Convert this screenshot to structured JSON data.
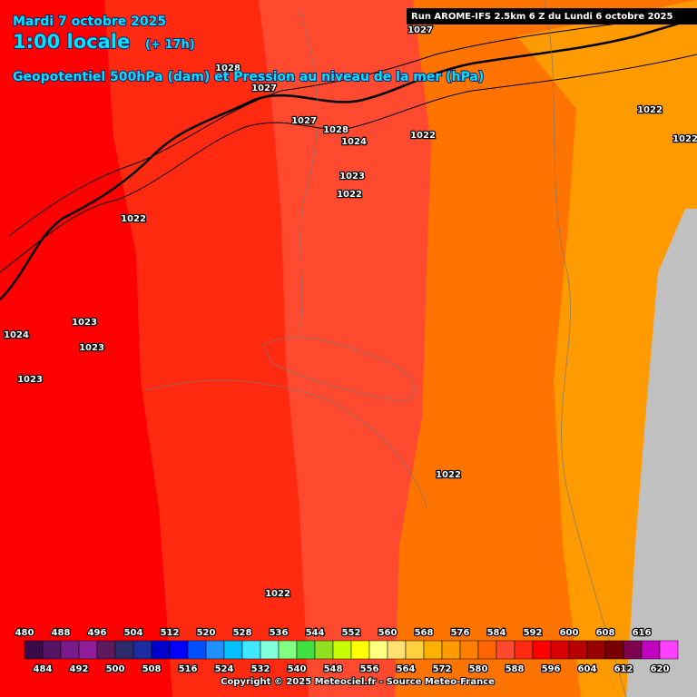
{
  "header": {
    "date": "Mardi 7 octobre 2025",
    "time": "1:00 locale",
    "lead": "(+ 17h)",
    "title": "Geopotentiel 500hPa (dam) et Pression au niveau de la mer (hPa)",
    "run": "Run AROME-IFS 2.5km 6 Z du Lundi 6 octobre 2025"
  },
  "isobar_labels": [
    "1027",
    "1028",
    "1027",
    "1027",
    "1028",
    "1024",
    "1022",
    "1022",
    "1022",
    "1023",
    "1022",
    "1022",
    "1023",
    "1024",
    "1023",
    "1023",
    "1022",
    "1022"
  ],
  "legend": {
    "top_labels": [
      "480",
      "488",
      "496",
      "504",
      "512",
      "520",
      "528",
      "536",
      "544",
      "552",
      "560",
      "568",
      "576",
      "584",
      "592",
      "600",
      "608",
      "616"
    ],
    "bottom_labels": [
      "484",
      "492",
      "500",
      "508",
      "516",
      "524",
      "532",
      "540",
      "548",
      "556",
      "564",
      "572",
      "580",
      "588",
      "596",
      "604",
      "612",
      "620"
    ],
    "colors": [
      "#3a0a48",
      "#561466",
      "#7a1a8a",
      "#901e98",
      "#5c1a5c",
      "#2c2c6c",
      "#1c2ca0",
      "#0000cc",
      "#0000ff",
      "#0050ff",
      "#1e90ff",
      "#00c0ff",
      "#40e8ff",
      "#80ffd8",
      "#80ff80",
      "#40e040",
      "#90e020",
      "#c8ff00",
      "#ffff00",
      "#ffff80",
      "#ffe070",
      "#ffd040",
      "#ffb000",
      "#ff9a00",
      "#ff8000",
      "#ff6400",
      "#ff4a30",
      "#ff2a10",
      "#ff0000",
      "#d80000",
      "#b80000",
      "#980000",
      "#780000",
      "#800050",
      "#c000c0",
      "#ff40ff"
    ]
  },
  "copyright": "Copyright © 2025 Meteociel.fr - Source Meteo-France"
}
